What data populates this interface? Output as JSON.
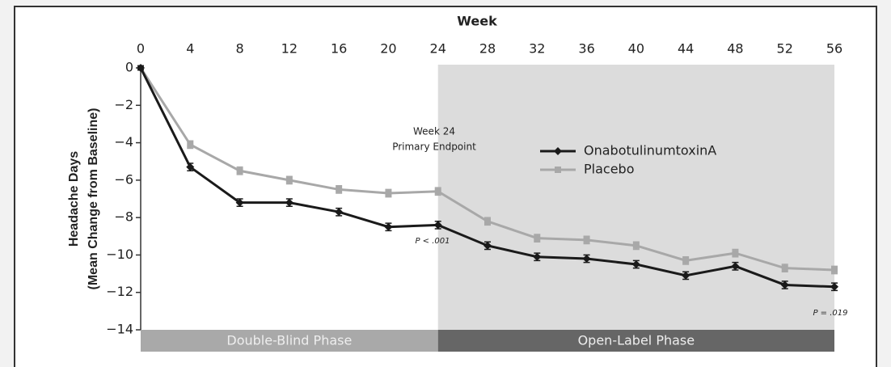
{
  "chart_data": {
    "type": "line",
    "x_label": "Week",
    "y_label": [
      "Headache Days",
      "(Mean Change from Baseline)"
    ],
    "x": [
      0,
      4,
      8,
      12,
      16,
      20,
      24,
      28,
      32,
      36,
      40,
      44,
      48,
      52,
      56
    ],
    "series": [
      {
        "name": "OnabotulinumtoxinA",
        "color": "#1a1a1a",
        "marker": "diamond",
        "values": [
          0,
          -5.3,
          -7.2,
          -7.2,
          -7.7,
          -8.5,
          -8.4,
          -9.5,
          -10.1,
          -10.2,
          -10.5,
          -11.1,
          -10.6,
          -11.6,
          -11.7
        ],
        "errors": [
          0.1,
          0.2,
          0.2,
          0.2,
          0.2,
          0.2,
          0.2,
          0.2,
          0.2,
          0.2,
          0.2,
          0.2,
          0.2,
          0.2,
          0.2
        ]
      },
      {
        "name": "Placebo",
        "color": "#a8a8a8",
        "marker": "square",
        "values": [
          0,
          -4.1,
          -5.5,
          -6.0,
          -6.5,
          -6.7,
          -6.6,
          -8.2,
          -9.1,
          -9.2,
          -9.5,
          -10.3,
          -9.9,
          -10.7,
          -10.8
        ],
        "errors": [
          0.1,
          0.2,
          0.2,
          0.2,
          0.2,
          0.2,
          0.2,
          0.2,
          0.2,
          0.2,
          0.2,
          0.2,
          0.2,
          0.2,
          0.2
        ]
      }
    ],
    "xlim": [
      0,
      56
    ],
    "xticks": [
      0,
      4,
      8,
      12,
      16,
      20,
      24,
      28,
      32,
      36,
      40,
      44,
      48,
      52,
      56
    ],
    "ylim": [
      -14,
      0
    ],
    "yticks": [
      {
        "value": -14,
        "label": "−14"
      },
      {
        "value": -12,
        "label": "−12"
      },
      {
        "value": -10,
        "label": "−10"
      },
      {
        "value": -8,
        "label": "−8"
      },
      {
        "value": -6,
        "label": "−6"
      },
      {
        "value": -4,
        "label": "−4"
      },
      {
        "value": -2,
        "label": "−2"
      },
      0
    ],
    "phases": [
      {
        "label": "Double-Blind Phase",
        "range": [
          0,
          24
        ],
        "color": "#a9a9a9"
      },
      {
        "label": "Open-Label Phase",
        "range": [
          24,
          56
        ],
        "color": "#666666",
        "shaded": "#dcdcdc"
      }
    ],
    "annotations": [
      "Week 24",
      "Primary Endpoint",
      "P < .001",
      "P = .019"
    ]
  }
}
